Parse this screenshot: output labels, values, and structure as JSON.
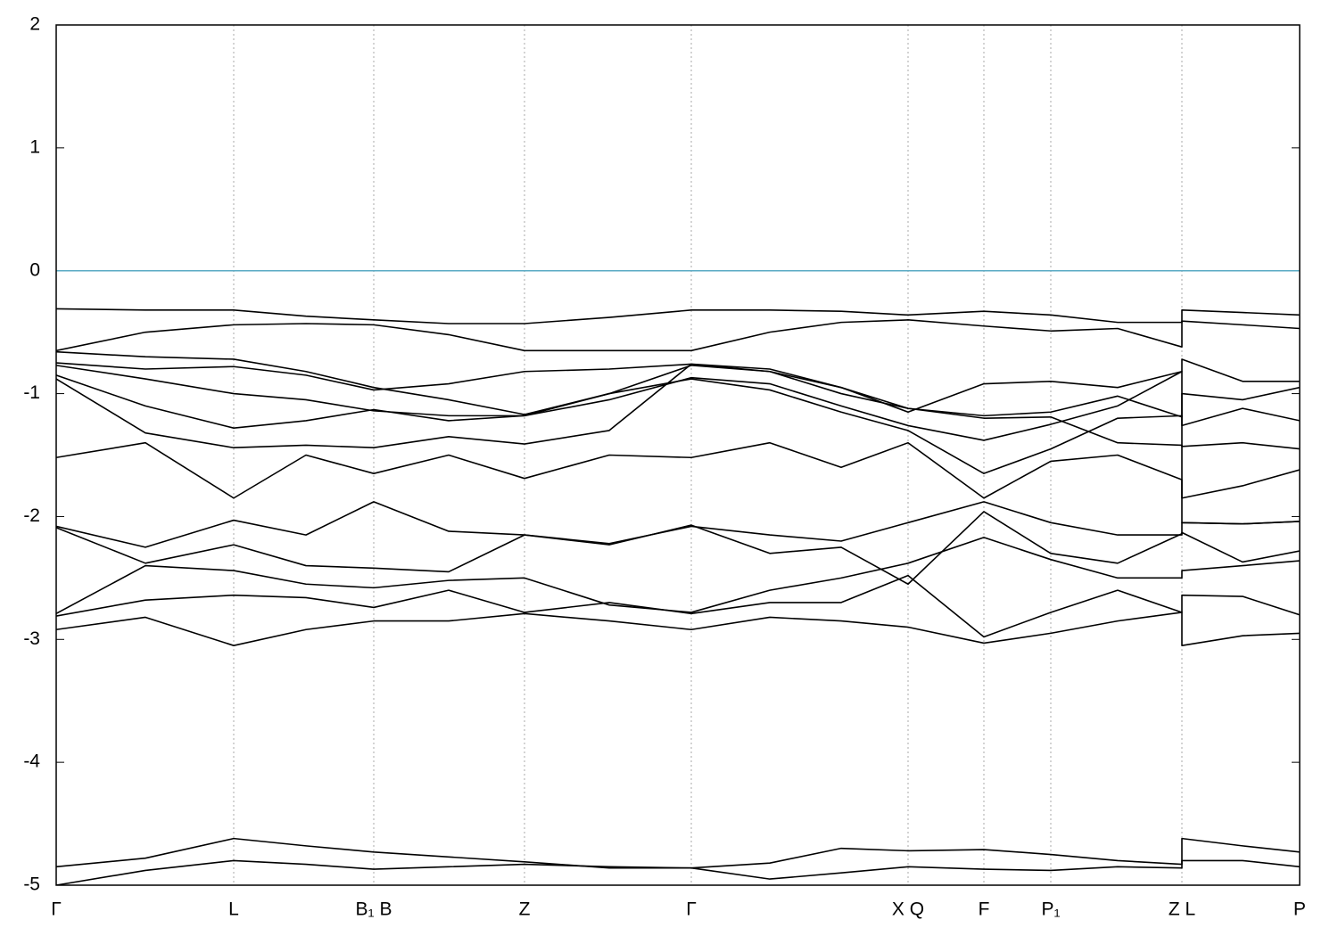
{
  "chart_data": {
    "type": "line",
    "x": [
      0,
      100,
      199,
      280,
      356,
      440,
      525,
      620,
      712,
      800,
      880,
      955,
      1040,
      1115,
      1190,
      1262,
      1262,
      1330,
      1394
    ],
    "xlim": [
      0,
      1394
    ],
    "xticks": [
      {
        "value": 0,
        "label": "Γ"
      },
      {
        "value": 199,
        "label": "L"
      },
      {
        "value": 356,
        "label": "B₁ B"
      },
      {
        "value": 525,
        "label": "Z"
      },
      {
        "value": 712,
        "label": "Γ"
      },
      {
        "value": 955,
        "label": "X Q"
      },
      {
        "value": 1040,
        "label": "F"
      },
      {
        "value": 1115,
        "label": "P₁"
      },
      {
        "value": 1262,
        "label": "Z L"
      },
      {
        "value": 1394,
        "label": "P"
      }
    ],
    "ylim": [
      -5,
      2
    ],
    "yticks": [
      -5,
      -4,
      -3,
      -2,
      -1,
      0,
      1,
      2
    ],
    "grid": true,
    "zero_line": {
      "y": 0,
      "color": "#5aaac4"
    },
    "series": [
      {
        "color": "#000000",
        "values": [
          -0.31,
          -0.32,
          -0.32,
          -0.37,
          -0.4,
          -0.43,
          -0.43,
          -0.38,
          -0.32,
          -0.32,
          -0.33,
          -0.36,
          -0.33,
          -0.36,
          -0.42,
          -0.42,
          -0.32,
          -0.34,
          -0.36
        ]
      },
      {
        "color": "#000000",
        "values": [
          -0.65,
          -0.5,
          -0.44,
          -0.43,
          -0.44,
          -0.52,
          -0.65,
          -0.65,
          -0.65,
          -0.5,
          -0.42,
          -0.4,
          -0.45,
          -0.49,
          -0.47,
          -0.62,
          -0.41,
          -0.44,
          -0.47
        ]
      },
      {
        "color": "#000000",
        "values": [
          -0.75,
          -0.8,
          -0.78,
          -0.85,
          -0.97,
          -0.92,
          -0.82,
          -0.8,
          -0.76,
          -0.8,
          -0.95,
          -1.15,
          -0.92,
          -0.9,
          -0.95,
          -0.82,
          -0.72,
          -0.9,
          -0.9
        ]
      },
      {
        "color": "#000000",
        "values": [
          -0.66,
          -0.7,
          -0.72,
          -0.82,
          -0.95,
          -1.05,
          -1.17,
          -1.0,
          -0.77,
          -0.82,
          -0.95,
          -1.12,
          -1.18,
          -1.15,
          -1.02,
          -1.19,
          -1.0,
          -1.05,
          -0.95
        ]
      },
      {
        "color": "#000000",
        "values": [
          -0.77,
          -0.88,
          -1.0,
          -1.05,
          -1.14,
          -1.18,
          -1.18,
          -1.05,
          -0.87,
          -0.92,
          -1.1,
          -1.26,
          -1.38,
          -1.25,
          -1.1,
          -0.82,
          -1.26,
          -1.12,
          -1.22
        ]
      },
      {
        "color": "#000000",
        "values": [
          -0.85,
          -1.1,
          -1.28,
          -1.22,
          -1.13,
          -1.22,
          -1.18,
          -1.0,
          -0.88,
          -0.97,
          -1.15,
          -1.3,
          -1.65,
          -1.45,
          -1.2,
          -1.18,
          -1.43,
          -1.4,
          -1.45
        ]
      },
      {
        "color": "#000000",
        "values": [
          -0.88,
          -1.32,
          -1.44,
          -1.42,
          -1.44,
          -1.35,
          -1.41,
          -1.3,
          -0.76,
          -0.82,
          -1.0,
          -1.12,
          -1.2,
          -1.19,
          -1.4,
          -1.42,
          -1.85,
          -1.75,
          -1.62
        ]
      },
      {
        "color": "#000000",
        "values": [
          -1.52,
          -1.4,
          -1.85,
          -1.5,
          -1.65,
          -1.5,
          -1.69,
          -1.5,
          -1.52,
          -1.4,
          -1.6,
          -1.4,
          -1.85,
          -1.55,
          -1.5,
          -1.7,
          -2.05,
          -2.06,
          -2.04
        ]
      },
      {
        "color": "#000000",
        "values": [
          -2.08,
          -2.25,
          -2.03,
          -2.15,
          -1.88,
          -2.12,
          -2.15,
          -2.22,
          -2.08,
          -2.15,
          -2.2,
          -2.05,
          -1.88,
          -2.05,
          -2.15,
          -2.15,
          -2.05,
          -2.06,
          -2.04
        ]
      },
      {
        "color": "#000000",
        "values": [
          -2.09,
          -2.38,
          -2.23,
          -2.4,
          -2.42,
          -2.45,
          -2.15,
          -2.23,
          -2.07,
          -2.3,
          -2.25,
          -2.55,
          -1.96,
          -2.3,
          -2.38,
          -2.14,
          -2.13,
          -2.37,
          -2.28
        ]
      },
      {
        "color": "#000000",
        "values": [
          -2.79,
          -2.4,
          -2.44,
          -2.55,
          -2.58,
          -2.52,
          -2.5,
          -2.72,
          -2.78,
          -2.6,
          -2.5,
          -2.38,
          -2.17,
          -2.35,
          -2.5,
          -2.5,
          -2.44,
          -2.4,
          -2.36
        ]
      },
      {
        "color": "#000000",
        "values": [
          -2.81,
          -2.68,
          -2.64,
          -2.66,
          -2.74,
          -2.6,
          -2.78,
          -2.7,
          -2.79,
          -2.7,
          -2.7,
          -2.48,
          -2.98,
          -2.78,
          -2.6,
          -2.78,
          -2.64,
          -2.65,
          -2.8
        ]
      },
      {
        "color": "#000000",
        "values": [
          -2.92,
          -2.82,
          -3.05,
          -2.92,
          -2.85,
          -2.85,
          -2.79,
          -2.85,
          -2.92,
          -2.82,
          -2.85,
          -2.9,
          -3.03,
          -2.95,
          -2.85,
          -2.78,
          -3.05,
          -2.97,
          -2.95
        ]
      },
      {
        "color": "#000000",
        "values": [
          -4.85,
          -4.78,
          -4.62,
          -4.68,
          -4.73,
          -4.77,
          -4.81,
          -4.86,
          -4.86,
          -4.82,
          -4.7,
          -4.72,
          -4.71,
          -4.75,
          -4.8,
          -4.83,
          -4.62,
          -4.68,
          -4.73
        ]
      },
      {
        "color": "#000000",
        "values": [
          -5.0,
          -4.88,
          -4.8,
          -4.83,
          -4.87,
          -4.85,
          -4.83,
          -4.85,
          -4.86,
          -4.95,
          -4.9,
          -4.85,
          -4.87,
          -4.88,
          -4.85,
          -4.86,
          -4.8,
          -4.8,
          -4.85
        ]
      }
    ]
  }
}
